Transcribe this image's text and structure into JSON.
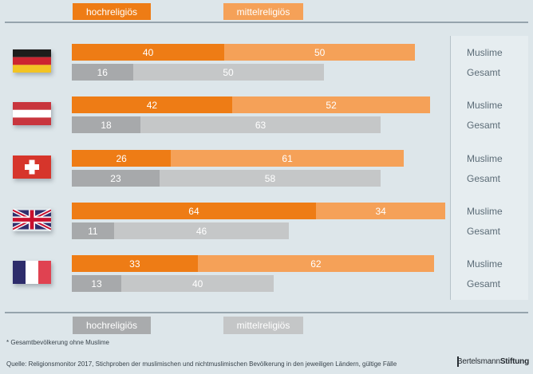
{
  "colors": {
    "background": "#dde6ea",
    "orange_dark": "#ee7c15",
    "orange_light": "#f5a158",
    "gray_dark": "#a7a9ab",
    "gray_light": "#c5c7c8",
    "line": "#96a4ad",
    "label_text": "#5c6c77",
    "value_text": "#ffffff"
  },
  "legend_top": [
    {
      "label": "hochreligiös",
      "color": "#ee7c15"
    },
    {
      "label": "mittelreligiös",
      "color": "#f5a158"
    }
  ],
  "legend_bottom": [
    {
      "label": "hochreligiös",
      "color": "#a9abad"
    },
    {
      "label": "mittelreligiös",
      "color": "#c4c6c7"
    }
  ],
  "row_labels": {
    "muslim": "Muslime",
    "total": "Gesamt"
  },
  "chart_data": {
    "type": "bar",
    "orientation": "horizontal",
    "stacked": true,
    "xlim": [
      0,
      100
    ],
    "series_labels": [
      "hochreligiös",
      "mittelreligiös"
    ],
    "groups": [
      {
        "country": "germany",
        "flag_icon": "germany-flag-icon",
        "muslime": [
          40,
          50
        ],
        "gesamt": [
          16,
          50
        ]
      },
      {
        "country": "austria",
        "flag_icon": "austria-flag-icon",
        "muslime": [
          42,
          52
        ],
        "gesamt": [
          18,
          63
        ]
      },
      {
        "country": "switzerland",
        "flag_icon": "switzerland-flag-icon",
        "muslime": [
          26,
          61
        ],
        "gesamt": [
          23,
          58
        ]
      },
      {
        "country": "united-kingdom",
        "flag_icon": "united-kingdom-flag-icon",
        "muslime": [
          64,
          34
        ],
        "gesamt": [
          11,
          46
        ]
      },
      {
        "country": "france",
        "flag_icon": "france-flag-icon",
        "muslime": [
          33,
          62
        ],
        "gesamt": [
          13,
          40
        ]
      }
    ]
  },
  "footnote": "* Gesamtbevölkerung ohne Muslime",
  "source": "Quelle: Religionsmonitor 2017, Stichproben der muslimischen und nichtmuslimischen Bevölkerung in den jeweiligen Ländern, gültige Fälle",
  "logo": {
    "part1": "Bertelsmann",
    "part2": "Stiftung"
  }
}
